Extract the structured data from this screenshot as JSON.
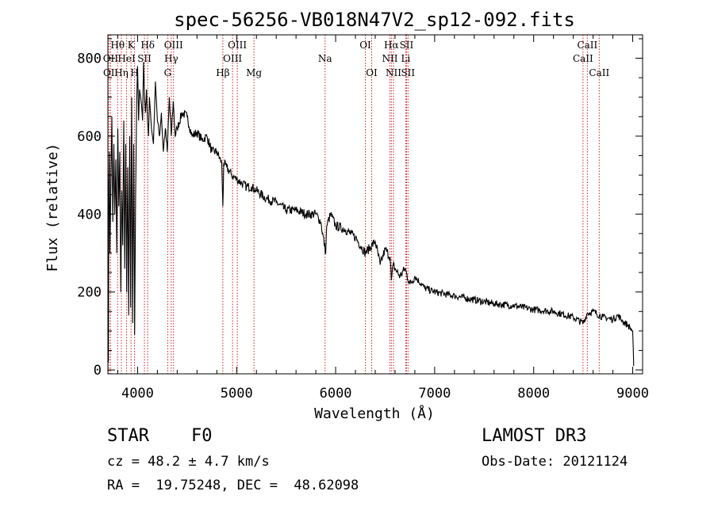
{
  "chart_data": {
    "type": "line",
    "title": "spec-56256-VB018N47V2_sp12-092.fits",
    "xlabel": "Wavelength (Å)",
    "ylabel": "Flux (relative)",
    "xlim": [
      3700,
      9100
    ],
    "ylim": [
      -10,
      860
    ],
    "xticks": [
      4000,
      5000,
      6000,
      7000,
      8000,
      9000
    ],
    "yticks": [
      0,
      200,
      400,
      600,
      800
    ],
    "grid": false,
    "series": [
      {
        "name": "spectrum",
        "x": [
          3700,
          3705,
          3710,
          3715,
          3720,
          3730,
          3740,
          3750,
          3760,
          3770,
          3780,
          3790,
          3800,
          3810,
          3820,
          3830,
          3840,
          3850,
          3860,
          3870,
          3880,
          3890,
          3900,
          3910,
          3920,
          3930,
          3940,
          3950,
          3960,
          3970,
          3980,
          3990,
          4000,
          4010,
          4020,
          4030,
          4040,
          4050,
          4060,
          4070,
          4080,
          4090,
          4100,
          4110,
          4120,
          4140,
          4160,
          4180,
          4200,
          4220,
          4240,
          4260,
          4280,
          4300,
          4320,
          4340,
          4360,
          4380,
          4400,
          4450,
          4500,
          4550,
          4600,
          4650,
          4700,
          4750,
          4800,
          4850,
          4861,
          4870,
          4900,
          4950,
          5000,
          5050,
          5100,
          5150,
          5200,
          5300,
          5400,
          5500,
          5600,
          5700,
          5800,
          5850,
          5900,
          5910,
          5950,
          6000,
          6100,
          6200,
          6300,
          6400,
          6450,
          6500,
          6550,
          6563,
          6580,
          6600,
          6650,
          6700,
          6750,
          6800,
          6900,
          7000,
          7200,
          7400,
          7600,
          7800,
          8000,
          8200,
          8400,
          8500,
          8540,
          8600,
          8700,
          8800,
          8850,
          8900,
          8950,
          9000,
          9010
        ],
        "values": [
          100,
          20,
          480,
          560,
          300,
          470,
          650,
          380,
          580,
          400,
          540,
          300,
          620,
          420,
          560,
          200,
          460,
          320,
          640,
          260,
          580,
          200,
          520,
          140,
          600,
          160,
          700,
          120,
          580,
          90,
          440,
          680,
          780,
          640,
          720,
          700,
          680,
          640,
          790,
          700,
          660,
          720,
          640,
          600,
          700,
          620,
          580,
          740,
          640,
          600,
          660,
          560,
          620,
          560,
          700,
          600,
          690,
          600,
          620,
          660,
          650,
          600,
          610,
          590,
          600,
          560,
          560,
          530,
          420,
          530,
          520,
          500,
          490,
          480,
          470,
          470,
          460,
          440,
          430,
          410,
          410,
          400,
          400,
          380,
          300,
          370,
          400,
          370,
          360,
          340,
          300,
          330,
          270,
          310,
          290,
          230,
          270,
          260,
          240,
          260,
          220,
          240,
          210,
          200,
          190,
          180,
          170,
          165,
          155,
          150,
          135,
          120,
          145,
          150,
          135,
          130,
          140,
          125,
          115,
          100,
          10
        ]
      }
    ],
    "line_annotations": [
      {
        "label": "Hθ",
        "x": 3798,
        "row": 1
      },
      {
        "label": "OII",
        "x": 3727,
        "row": 2
      },
      {
        "label": "OI",
        "x": 3710,
        "row": 3
      },
      {
        "label": "Hη",
        "x": 3836,
        "row": 3
      },
      {
        "label": "HeI",
        "x": 3889,
        "row": 2
      },
      {
        "label": "K",
        "x": 3934,
        "row": 1
      },
      {
        "label": "SII",
        "x": 4069,
        "row": 2
      },
      {
        "label": "H",
        "x": 3969,
        "row": 3
      },
      {
        "label": "Hδ",
        "x": 4102,
        "row": 1
      },
      {
        "label": "OIII",
        "x": 4363,
        "row": 1
      },
      {
        "label": "Hγ",
        "x": 4340,
        "row": 2
      },
      {
        "label": "G",
        "x": 4304,
        "row": 3
      },
      {
        "label": "OIII",
        "x": 5007,
        "row": 1
      },
      {
        "label": "OIII",
        "x": 4959,
        "row": 2
      },
      {
        "label": "Hβ",
        "x": 4861,
        "row": 3
      },
      {
        "label": "Mg",
        "x": 5175,
        "row": 3
      },
      {
        "label": "Na",
        "x": 5893,
        "row": 2
      },
      {
        "label": "OI",
        "x": 6300,
        "row": 1
      },
      {
        "label": "OI",
        "x": 6364,
        "row": 3
      },
      {
        "label": "Hα",
        "x": 6563,
        "row": 1
      },
      {
        "label": "SII",
        "x": 6716,
        "row": 1
      },
      {
        "label": "NII",
        "x": 6548,
        "row": 2
      },
      {
        "label": "Li",
        "x": 6708,
        "row": 2
      },
      {
        "label": "NII",
        "x": 6584,
        "row": 3
      },
      {
        "label": "SII",
        "x": 6731,
        "row": 3
      },
      {
        "label": "CaII",
        "x": 8542,
        "row": 1
      },
      {
        "label": "CaII",
        "x": 8498,
        "row": 2
      },
      {
        "label": "CaII",
        "x": 8662,
        "row": 3
      }
    ]
  },
  "info": {
    "object_class": "STAR",
    "subclass": "F0",
    "survey": "LAMOST DR3",
    "cz_line": "cz = 48.2 ± 4.7 km/s",
    "obs_date_line": "Obs-Date: 20121124",
    "coords_line": "RA =  19.75248, DEC =  48.62098"
  },
  "colors": {
    "spectrum": "#000000",
    "line_marker": "#cc2020",
    "axis": "#000000"
  }
}
